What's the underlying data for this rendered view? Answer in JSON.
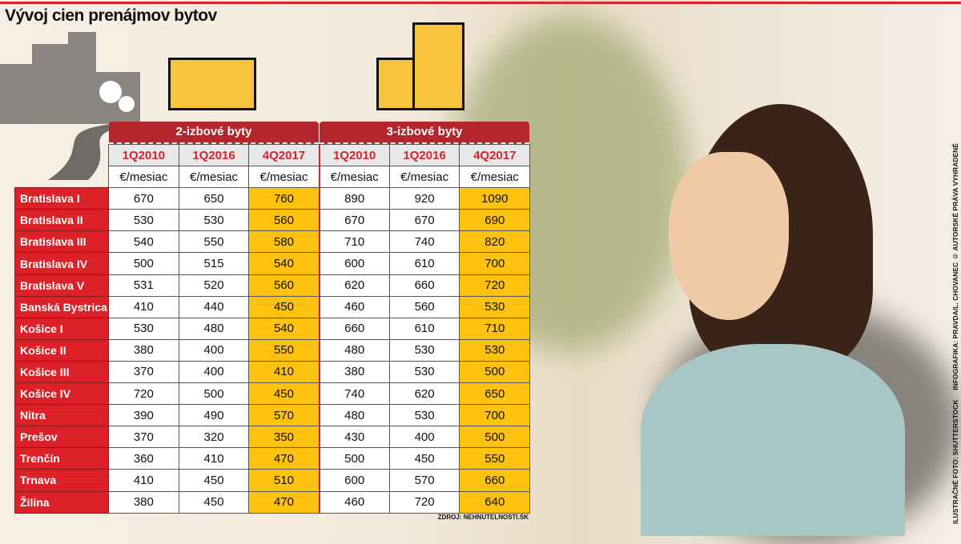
{
  "title": "Vývoj cien prenájmov bytov",
  "credit": "ILUSTRAČNÉ FOTO: SHUTTERSTOCK     INFOGRAFIKA: PRAVDA/L. CHOVANEC © AUTORSKÉ PRÁVA VYHRADENÉ",
  "source": "ZDROJ: NEHNUTELNOSTI.SK",
  "colors": {
    "red": "#dd2128",
    "highlight": "#fdc10f",
    "band": "#b5252c"
  },
  "chart_data": {
    "type": "table",
    "groups": [
      "2-izbové byty",
      "3-izbové byty"
    ],
    "columns": [
      "1Q2010",
      "1Q2016",
      "4Q2017",
      "1Q2010",
      "1Q2016",
      "4Q2017"
    ],
    "unit": "€/mesiac",
    "highlighted_columns": [
      "4Q2017"
    ],
    "rows": [
      {
        "region": "Bratislava I",
        "values": [
          670,
          650,
          760,
          890,
          920,
          1090
        ]
      },
      {
        "region": "Bratislava II",
        "values": [
          530,
          530,
          560,
          670,
          670,
          690
        ]
      },
      {
        "region": "Bratislava III",
        "values": [
          540,
          550,
          580,
          710,
          740,
          820
        ]
      },
      {
        "region": "Bratislava IV",
        "values": [
          500,
          515,
          540,
          600,
          610,
          700
        ]
      },
      {
        "region": "Bratislava V",
        "values": [
          531,
          520,
          560,
          620,
          660,
          720
        ]
      },
      {
        "region": "Banská Bystrica",
        "values": [
          410,
          440,
          450,
          460,
          560,
          530
        ]
      },
      {
        "region": "Košice I",
        "values": [
          530,
          480,
          540,
          660,
          610,
          710
        ]
      },
      {
        "region": "Košice II",
        "values": [
          380,
          400,
          550,
          480,
          530,
          530
        ]
      },
      {
        "region": "Košice III",
        "values": [
          370,
          400,
          410,
          380,
          530,
          500
        ]
      },
      {
        "region": "Košice IV",
        "values": [
          720,
          500,
          450,
          740,
          620,
          650
        ]
      },
      {
        "region": "Nitra",
        "values": [
          390,
          490,
          570,
          480,
          530,
          700
        ]
      },
      {
        "region": "Prešov",
        "values": [
          370,
          320,
          350,
          430,
          400,
          500
        ]
      },
      {
        "region": "Trenčín",
        "values": [
          360,
          410,
          470,
          500,
          450,
          550
        ]
      },
      {
        "region": "Trnava",
        "values": [
          410,
          450,
          510,
          600,
          570,
          660
        ]
      },
      {
        "region": "Žilina",
        "values": [
          380,
          450,
          470,
          460,
          720,
          640
        ]
      }
    ]
  }
}
